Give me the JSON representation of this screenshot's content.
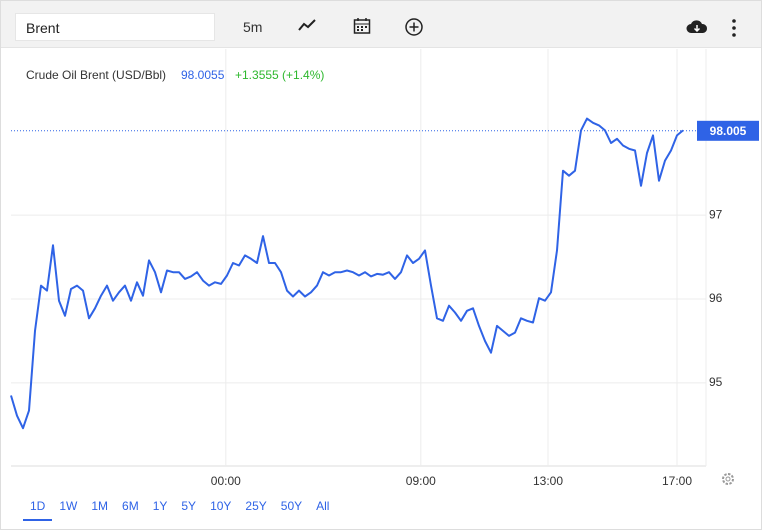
{
  "toolbar": {
    "search": "Brent",
    "interval": "5m"
  },
  "chart_data": {
    "type": "line",
    "title": "Crude Oil Brent (USD/Bbl)",
    "price": "98.0055",
    "change": "+1.3555 (+1.4%)",
    "color": "#2f63e6",
    "x": [
      0,
      1,
      2,
      3,
      4,
      5,
      6,
      7,
      8,
      9,
      10,
      11,
      12,
      13,
      14,
      15,
      16,
      17,
      18,
      19,
      20,
      21,
      22,
      23,
      24,
      25,
      26,
      27,
      28,
      29,
      30,
      31,
      32,
      33,
      34,
      35,
      36,
      37,
      38,
      39,
      40,
      41,
      42,
      43,
      44,
      45,
      46,
      47,
      48,
      49,
      50,
      51,
      52,
      53,
      54,
      55,
      56,
      57,
      58,
      59,
      60,
      61,
      62,
      63,
      64,
      65,
      66,
      67,
      68,
      69,
      70,
      71,
      72,
      73,
      74,
      75,
      76,
      77,
      78,
      79,
      80,
      81,
      82,
      83,
      84,
      85,
      86,
      87,
      88,
      89,
      90,
      91,
      92,
      93,
      94,
      95,
      96,
      97,
      98,
      99,
      100,
      101,
      102,
      103,
      104,
      105,
      106,
      107,
      108,
      109,
      110,
      111,
      112
    ],
    "values": [
      94.85,
      94.61,
      94.46,
      94.67,
      95.62,
      96.16,
      96.1,
      96.64,
      95.98,
      95.8,
      96.12,
      96.16,
      96.1,
      95.77,
      95.89,
      96.04,
      96.16,
      95.98,
      96.08,
      96.16,
      95.98,
      96.2,
      96.04,
      96.46,
      96.32,
      96.08,
      96.34,
      96.32,
      96.32,
      96.24,
      96.27,
      96.32,
      96.22,
      96.16,
      96.2,
      96.18,
      96.28,
      96.43,
      96.4,
      96.52,
      96.48,
      96.43,
      96.75,
      96.43,
      96.43,
      96.32,
      96.1,
      96.03,
      96.1,
      96.03,
      96.08,
      96.16,
      96.32,
      96.28,
      96.32,
      96.32,
      96.34,
      96.32,
      96.28,
      96.32,
      96.27,
      96.3,
      96.29,
      96.32,
      96.24,
      96.32,
      96.52,
      96.43,
      96.48,
      96.58,
      96.16,
      95.77,
      95.74,
      95.92,
      95.84,
      95.74,
      95.86,
      95.89,
      95.68,
      95.5,
      95.36,
      95.68,
      95.62,
      95.56,
      95.6,
      95.77,
      95.74,
      95.72,
      96.01,
      95.98,
      96.08,
      96.58,
      97.53,
      97.47,
      97.53,
      98.01,
      98.15,
      98.1,
      98.07,
      98.01,
      97.86,
      97.91,
      97.83,
      97.79,
      97.77,
      97.35,
      97.74,
      97.95,
      97.41,
      97.65,
      97.77,
      97.95,
      98.01
    ],
    "xlim": [
      0,
      115.83
    ],
    "xticks": [
      {
        "value": 35.8,
        "label": "00:00"
      },
      {
        "value": 68.3,
        "label": "09:00"
      },
      {
        "value": 89.5,
        "label": "13:00"
      },
      {
        "value": 111,
        "label": "17:00"
      }
    ],
    "ylim": [
      94.01,
      98.98
    ],
    "yticks": [
      95,
      96,
      97
    ],
    "last_price": {
      "value": 98.005,
      "label": "98.005"
    },
    "grid": true
  },
  "ranges": [
    "1D",
    "1W",
    "1M",
    "6M",
    "1Y",
    "5Y",
    "10Y",
    "25Y",
    "50Y",
    "All"
  ]
}
